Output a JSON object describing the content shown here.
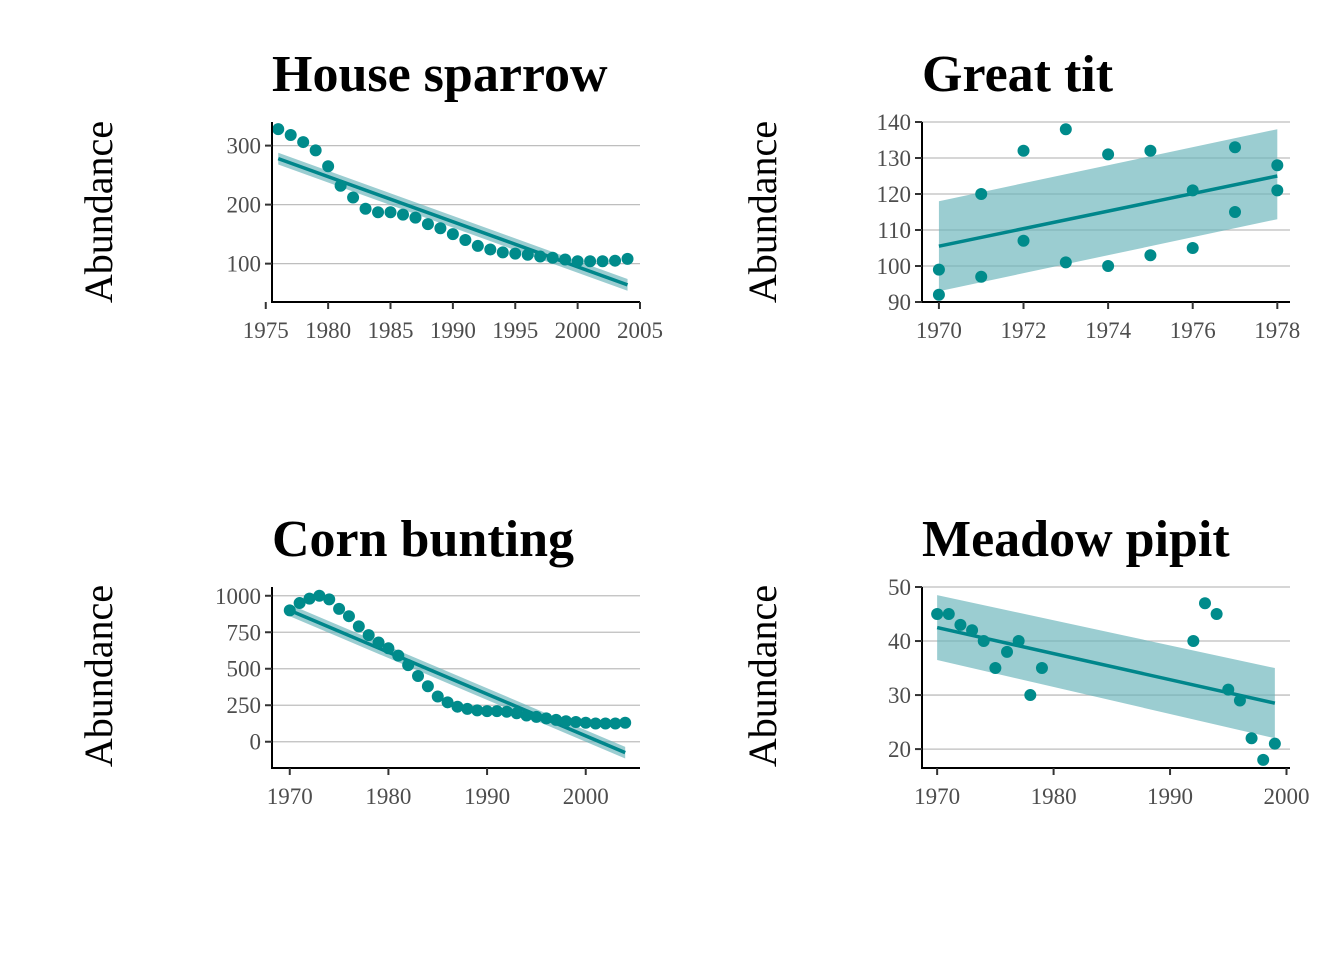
{
  "chart_data": [
    {
      "type": "scatter",
      "title": "House sparrow",
      "xlabel": "",
      "ylabel": "Abundance",
      "xlim": [
        1975.5,
        2005
      ],
      "ylim": [
        35,
        340
      ],
      "xticks": [
        1975,
        1980,
        1985,
        1990,
        1995,
        2000,
        2005
      ],
      "yticks": [
        100,
        200,
        300
      ],
      "xtick_labels": [
        "1975",
        "1980",
        "1985",
        "1990",
        "1995",
        "2000",
        "2005"
      ],
      "ytick_labels": [
        "100",
        "200",
        "300"
      ],
      "grid": "horizontal",
      "x": [
        1976,
        1977,
        1978,
        1979,
        1980,
        1981,
        1982,
        1983,
        1984,
        1985,
        1986,
        1987,
        1988,
        1989,
        1990,
        1991,
        1992,
        1993,
        1994,
        1995,
        1996,
        1997,
        1998,
        1999,
        2000,
        2001,
        2002,
        2003,
        2004
      ],
      "y": [
        328,
        318,
        306,
        292,
        265,
        232,
        212,
        193,
        187,
        187,
        183,
        178,
        167,
        160,
        150,
        140,
        130,
        124,
        119,
        117,
        115,
        112,
        110,
        107,
        104,
        104,
        104,
        105,
        108
      ],
      "trend": {
        "x0": 1976,
        "y0": 278,
        "x1": 2004,
        "y1": 64,
        "band_start": [
          268,
          288
        ],
        "band_end": [
          54,
          74
        ]
      }
    },
    {
      "type": "scatter",
      "title": "Great tit",
      "xlabel": "",
      "ylabel": "Abundance",
      "xlim": [
        1969.6,
        1978.3
      ],
      "ylim": [
        90,
        140
      ],
      "xticks": [
        1970,
        1972,
        1974,
        1976,
        1978
      ],
      "yticks": [
        90,
        100,
        110,
        120,
        130,
        140
      ],
      "xtick_labels": [
        "1970",
        "1972",
        "1974",
        "1976",
        "1978"
      ],
      "ytick_labels": [
        "90",
        "100",
        "110",
        "120",
        "130",
        "140"
      ],
      "grid": "horizontal",
      "x": [
        1970,
        1970,
        1971,
        1971,
        1972,
        1972,
        1973,
        1973,
        1974,
        1974,
        1975,
        1975,
        1976,
        1976,
        1977,
        1977,
        1978,
        1978
      ],
      "y": [
        92,
        99,
        97,
        120,
        107,
        132,
        101,
        138,
        100,
        131,
        103,
        132,
        105,
        121,
        115,
        133,
        121,
        128
      ],
      "trend": {
        "x0": 1970,
        "y0": 105.5,
        "x1": 1978,
        "y1": 125,
        "band_start": [
          93,
          118
        ],
        "band_end": [
          113,
          138
        ]
      }
    },
    {
      "type": "scatter",
      "title": "Corn bunting",
      "xlabel": "",
      "ylabel": "Abundance",
      "xlim": [
        1968.2,
        2005.5
      ],
      "ylim": [
        -180,
        1060
      ],
      "xticks": [
        1970,
        1980,
        1990,
        2000
      ],
      "yticks": [
        0,
        250,
        500,
        750,
        1000
      ],
      "xtick_labels": [
        "1970",
        "1980",
        "1990",
        "2000"
      ],
      "ytick_labels": [
        "0",
        "250",
        "500",
        "750",
        "1000"
      ],
      "grid": "horizontal",
      "x": [
        1970,
        1971,
        1972,
        1973,
        1974,
        1975,
        1976,
        1977,
        1978,
        1979,
        1980,
        1981,
        1982,
        1983,
        1984,
        1985,
        1986,
        1987,
        1988,
        1989,
        1990,
        1991,
        1992,
        1993,
        1994,
        1995,
        1996,
        1997,
        1998,
        1999,
        2000,
        2001,
        2002,
        2003,
        2004
      ],
      "y": [
        900,
        950,
        980,
        1000,
        975,
        910,
        860,
        790,
        730,
        680,
        640,
        590,
        525,
        450,
        380,
        310,
        270,
        240,
        225,
        215,
        210,
        210,
        205,
        195,
        180,
        170,
        160,
        150,
        140,
        135,
        130,
        125,
        125,
        125,
        130
      ],
      "trend": {
        "x0": 1970,
        "y0": 900,
        "x1": 2004,
        "y1": -75,
        "band_start": [
          860,
          940
        ],
        "band_end": [
          -115,
          -35
        ]
      }
    },
    {
      "type": "scatter",
      "title": "Meadow pipit",
      "xlabel": "",
      "ylabel": "Abundance",
      "xlim": [
        1968.7,
        2000.3
      ],
      "ylim": [
        16.5,
        50
      ],
      "xticks": [
        1970,
        1980,
        1990,
        2000
      ],
      "yticks": [
        20,
        30,
        40,
        50
      ],
      "xtick_labels": [
        "1970",
        "1980",
        "1990",
        "2000"
      ],
      "ytick_labels": [
        "20",
        "30",
        "40",
        "50"
      ],
      "grid": "horizontal",
      "x": [
        1970,
        1971,
        1972,
        1973,
        1974,
        1975,
        1976,
        1977,
        1978,
        1979,
        1992,
        1993,
        1994,
        1995,
        1996,
        1997,
        1998,
        1999
      ],
      "y": [
        45,
        45,
        43,
        42,
        40,
        35,
        38,
        40,
        30,
        35,
        40,
        47,
        45,
        31,
        29,
        22,
        18,
        21
      ],
      "trend": {
        "x0": 1970,
        "y0": 42.5,
        "x1": 1999,
        "y1": 28.5,
        "band_start": [
          36.5,
          48.5
        ],
        "band_end": [
          22,
          35
        ]
      }
    }
  ]
}
